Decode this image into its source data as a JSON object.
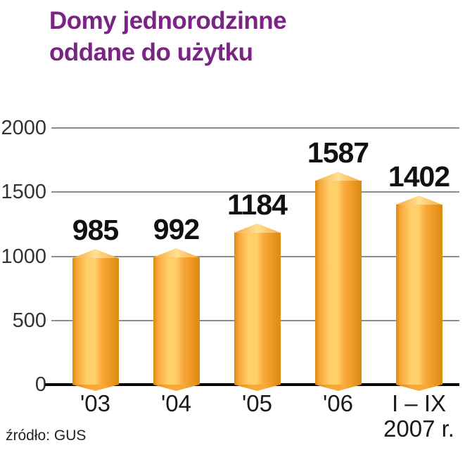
{
  "header": {
    "line1": "Domy jednorodzinne",
    "line2": "oddane do użytku"
  },
  "footer": {
    "source": "źródło: GUS"
  },
  "colors": {
    "title": "#7a2483",
    "bar_main": "#f9a83a",
    "bar_light": "#ffd069",
    "bar_dark": "#dd8a10",
    "grid": "#8c8c8c",
    "axis": "#000000",
    "label": "#111111"
  },
  "chart_data": {
    "type": "bar",
    "title": "Domy jednorodzinne oddane do użytku",
    "source": "źródło: GUS",
    "categories": [
      "'03",
      "'04",
      "'05",
      "'06",
      "I – IX\n2007 r."
    ],
    "values": [
      985,
      992,
      1184,
      1587,
      1402
    ],
    "xlabel": "",
    "ylabel": "",
    "ylim": [
      0,
      2000
    ],
    "yticks": [
      0,
      500,
      1000,
      1500,
      2000
    ],
    "grid": "horizontal",
    "legend": "none",
    "bar_style": "3d-orange-gradient"
  }
}
